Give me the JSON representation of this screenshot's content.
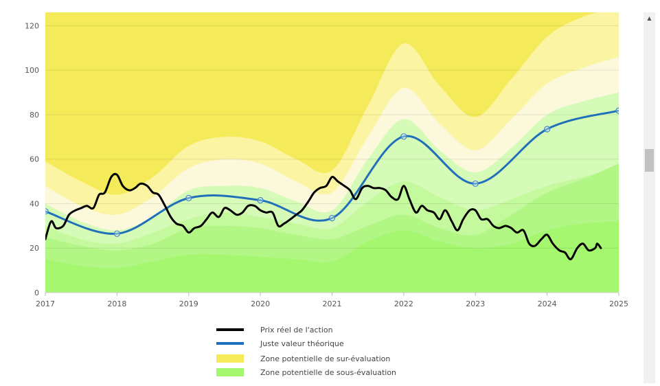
{
  "chart_data": {
    "type": "area",
    "title": "",
    "xlabel": "",
    "ylabel": "",
    "xlim": [
      2017,
      2025
    ],
    "ylim": [
      0,
      126
    ],
    "x_ticks": [
      "2017",
      "2018",
      "2019",
      "2020",
      "2021",
      "2022",
      "2023",
      "2024",
      "2025"
    ],
    "y_ticks": [
      "0",
      "20",
      "40",
      "60",
      "80",
      "100",
      "120"
    ],
    "grid": "horizontal",
    "legend_position": "bottom",
    "series": [
      {
        "name": "Prix réel de l'action",
        "color": "#000000",
        "points": [
          [
            2017.0,
            24
          ],
          [
            2017.08,
            32
          ],
          [
            2017.15,
            29
          ],
          [
            2017.25,
            30
          ],
          [
            2017.33,
            35
          ],
          [
            2017.42,
            37
          ],
          [
            2017.5,
            38
          ],
          [
            2017.58,
            39
          ],
          [
            2017.67,
            38
          ],
          [
            2017.75,
            44
          ],
          [
            2017.83,
            45
          ],
          [
            2017.92,
            52
          ],
          [
            2018.0,
            53
          ],
          [
            2018.08,
            48
          ],
          [
            2018.17,
            46
          ],
          [
            2018.25,
            47
          ],
          [
            2018.33,
            49
          ],
          [
            2018.42,
            48
          ],
          [
            2018.5,
            45
          ],
          [
            2018.58,
            44
          ],
          [
            2018.67,
            39
          ],
          [
            2018.75,
            34
          ],
          [
            2018.83,
            31
          ],
          [
            2018.92,
            30
          ],
          [
            2019.0,
            27
          ],
          [
            2019.08,
            29
          ],
          [
            2019.17,
            30
          ],
          [
            2019.25,
            33
          ],
          [
            2019.33,
            36
          ],
          [
            2019.42,
            34
          ],
          [
            2019.5,
            38
          ],
          [
            2019.58,
            37
          ],
          [
            2019.67,
            35
          ],
          [
            2019.75,
            36
          ],
          [
            2019.83,
            39
          ],
          [
            2019.92,
            39
          ],
          [
            2020.0,
            37
          ],
          [
            2020.08,
            36
          ],
          [
            2020.17,
            36
          ],
          [
            2020.25,
            30
          ],
          [
            2020.33,
            31
          ],
          [
            2020.42,
            33
          ],
          [
            2020.5,
            35
          ],
          [
            2020.58,
            37
          ],
          [
            2020.67,
            41
          ],
          [
            2020.75,
            45
          ],
          [
            2020.83,
            47
          ],
          [
            2020.92,
            48
          ],
          [
            2021.0,
            52
          ],
          [
            2021.08,
            50
          ],
          [
            2021.17,
            48
          ],
          [
            2021.25,
            46
          ],
          [
            2021.33,
            42
          ],
          [
            2021.42,
            47
          ],
          [
            2021.5,
            48
          ],
          [
            2021.58,
            47
          ],
          [
            2021.67,
            47
          ],
          [
            2021.75,
            46
          ],
          [
            2021.83,
            43
          ],
          [
            2021.92,
            42
          ],
          [
            2022.0,
            48
          ],
          [
            2022.08,
            42
          ],
          [
            2022.17,
            36
          ],
          [
            2022.25,
            39
          ],
          [
            2022.33,
            37
          ],
          [
            2022.42,
            36
          ],
          [
            2022.5,
            33
          ],
          [
            2022.58,
            37
          ],
          [
            2022.67,
            32
          ],
          [
            2022.75,
            28
          ],
          [
            2022.83,
            33
          ],
          [
            2022.92,
            37
          ],
          [
            2023.0,
            37
          ],
          [
            2023.08,
            33
          ],
          [
            2023.17,
            33
          ],
          [
            2023.25,
            30
          ],
          [
            2023.33,
            29
          ],
          [
            2023.42,
            30
          ],
          [
            2023.5,
            29
          ],
          [
            2023.58,
            27
          ],
          [
            2023.67,
            28
          ],
          [
            2023.75,
            22
          ],
          [
            2023.83,
            21
          ],
          [
            2023.92,
            24
          ],
          [
            2024.0,
            26
          ],
          [
            2024.08,
            22
          ],
          [
            2024.17,
            19
          ],
          [
            2024.25,
            18
          ],
          [
            2024.33,
            15
          ],
          [
            2024.42,
            20
          ],
          [
            2024.5,
            22
          ],
          [
            2024.58,
            19
          ],
          [
            2024.67,
            20
          ],
          [
            2024.7,
            22
          ],
          [
            2024.75,
            20
          ]
        ]
      },
      {
        "name": "Juste valeur théorique",
        "color": "#1f6fba",
        "points": [
          [
            2017,
            36.5
          ],
          [
            2018,
            26.5
          ],
          [
            2019,
            42.5
          ],
          [
            2020,
            41.5
          ],
          [
            2021,
            33.5
          ],
          [
            2022,
            70.2
          ],
          [
            2023,
            49.0
          ],
          [
            2024,
            73.5
          ],
          [
            2025,
            81.8
          ]
        ]
      }
    ],
    "zones": {
      "over_label": "Zone potentielle de sur-évaluation",
      "under_label": "Zone potentielle de sous-évaluation",
      "over_color": "#f5ea5a",
      "under_color": "#a4f76f",
      "boundaries": {
        "x": [
          2017.0,
          2017.5,
          2018.0,
          2018.5,
          2019.0,
          2019.5,
          2020.0,
          2020.5,
          2021.0,
          2021.5,
          2022.0,
          2022.5,
          2023.0,
          2023.5,
          2024.0,
          2024.5,
          2025.0
        ],
        "over_outer": [
          59,
          50,
          44,
          52,
          66,
          70,
          68,
          60,
          55,
          84,
          112,
          93,
          79,
          96,
          115,
          124,
          128
        ],
        "over_mid": [
          48,
          39,
          35,
          43,
          56,
          60,
          58,
          50,
          45,
          70,
          92,
          76,
          64,
          78,
          94,
          101,
          106
        ],
        "over_inner": [
          40,
          32,
          28,
          34,
          46,
          48,
          47,
          41,
          37,
          60,
          78,
          64,
          54,
          65,
          80,
          86,
          90
        ],
        "under_inner": [
          30,
          24,
          22,
          27,
          33,
          36,
          34,
          31,
          29,
          41,
          50,
          43,
          37,
          42,
          48,
          52,
          56
        ],
        "under_mid": [
          25,
          21,
          19,
          22,
          29,
          30,
          29,
          26,
          24,
          30,
          35,
          29,
          26,
          35,
          45,
          51,
          58
        ],
        "under_outer": [
          15,
          12,
          11,
          14,
          17,
          17,
          16,
          15,
          14,
          23,
          28,
          23,
          20,
          22,
          28,
          31,
          32
        ]
      }
    },
    "marker_color": "#3a88c8"
  },
  "scrollbar": {
    "up_arrow": "▲"
  }
}
